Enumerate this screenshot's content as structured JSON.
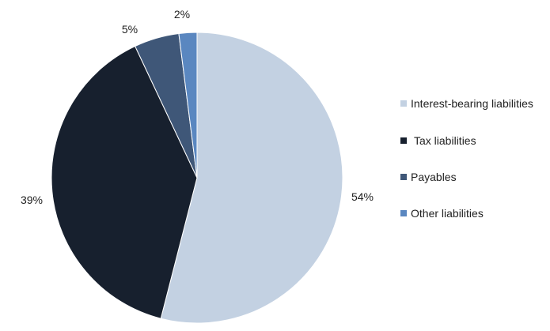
{
  "chart_data": {
    "type": "pie",
    "title": "",
    "categories": [
      "Interest-bearing liabilities",
      "Tax liabilities",
      "Payables",
      "Other liabilities"
    ],
    "values": [
      54,
      39,
      5,
      2
    ],
    "value_labels": [
      "54%",
      "39%",
      "5%",
      "2%"
    ],
    "colors": [
      "#c3d1e2",
      "#17202e",
      "#3f5778",
      "#5a87c0"
    ],
    "legend_placement": "right",
    "start_angle": "12 o'clock",
    "direction": "clockwise"
  }
}
